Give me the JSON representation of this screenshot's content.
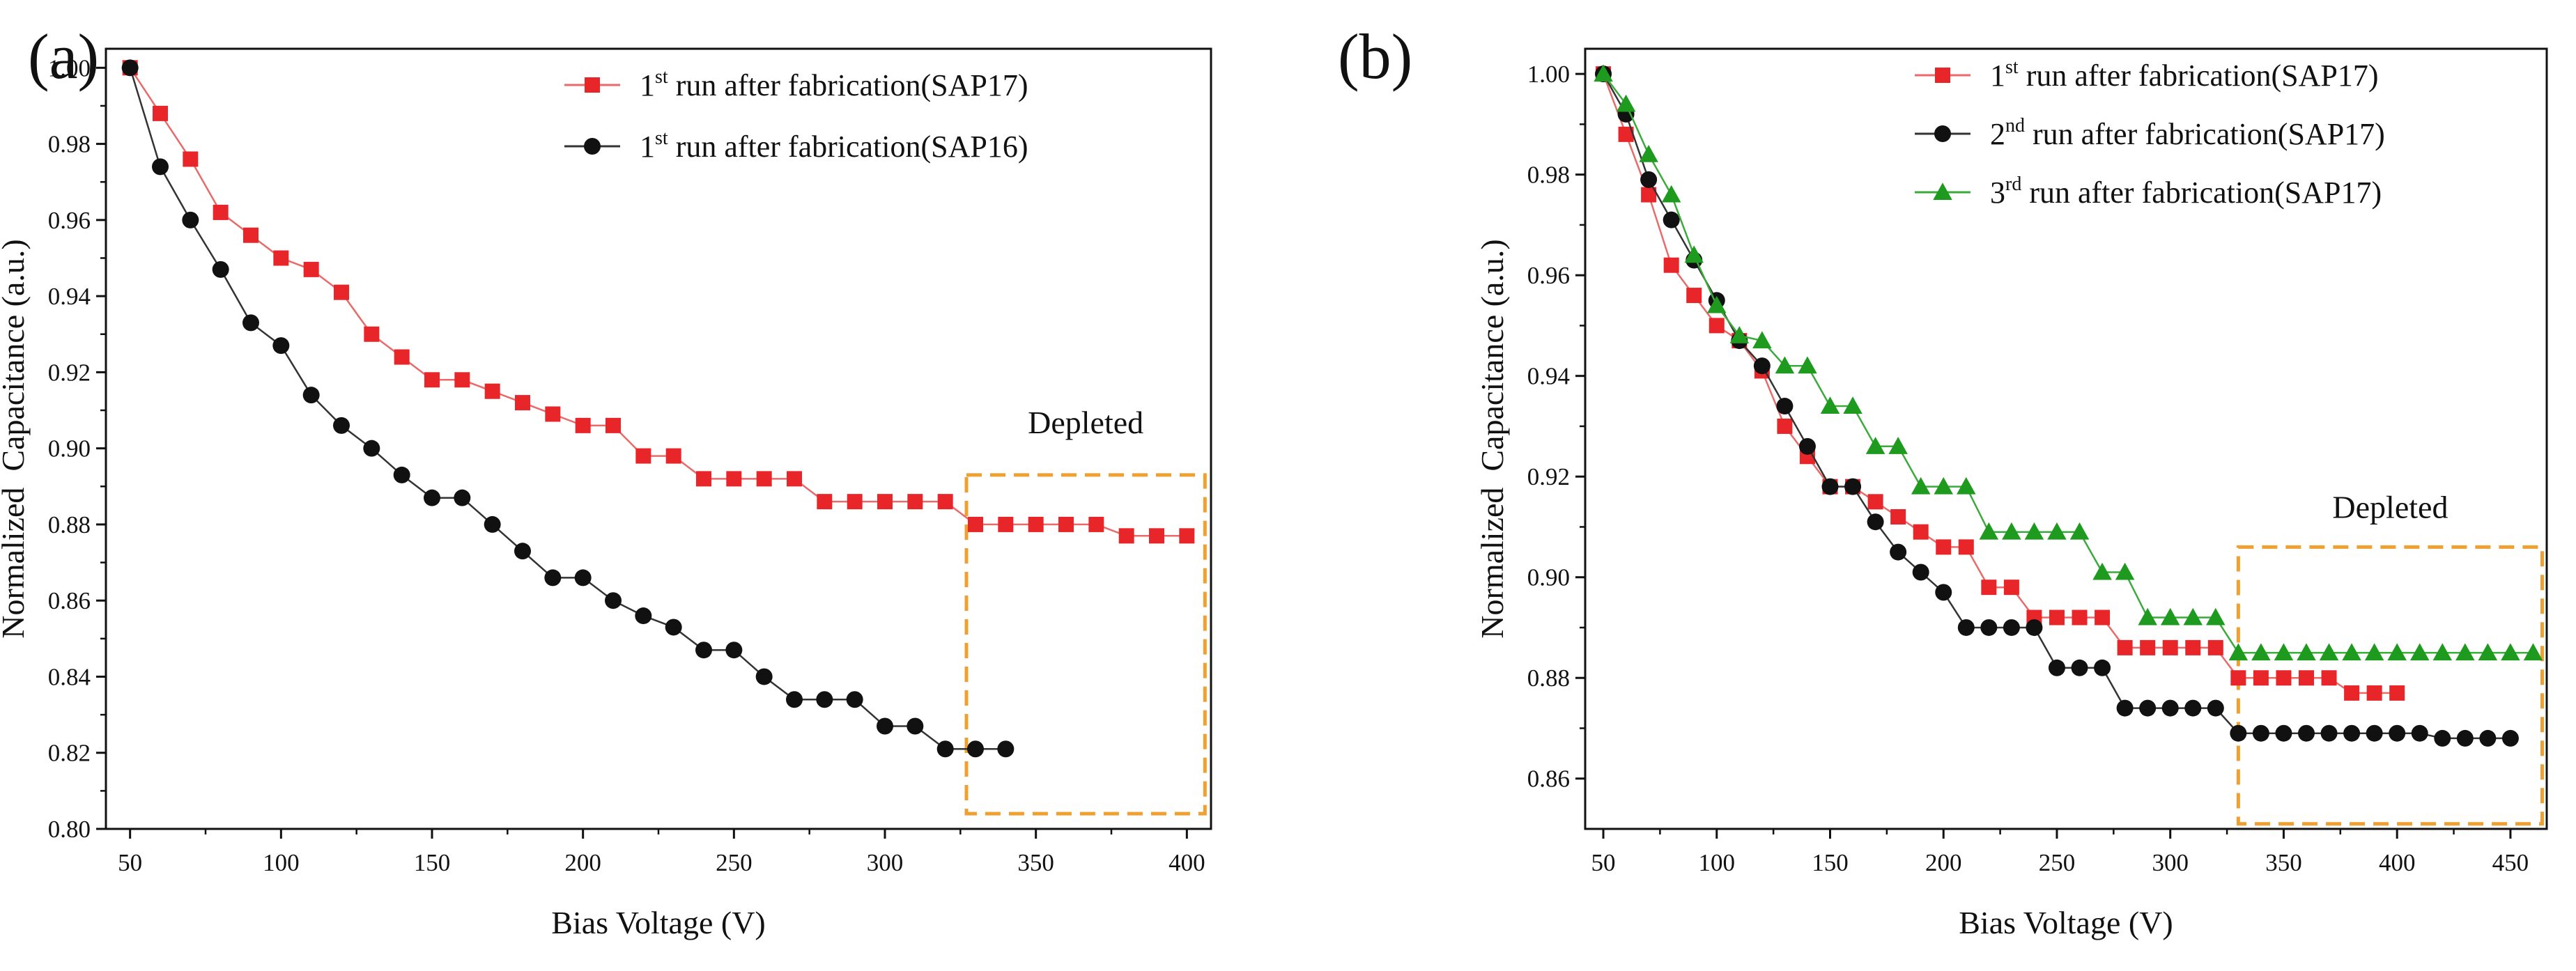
{
  "panels": [
    {
      "label": "(a)",
      "chart_data": {
        "type": "line",
        "title": "",
        "xlabel": "Bias Voltage (V)",
        "ylabel": "Normalized  Capacitance (a.u.)",
        "xlim": [
          42,
          408
        ],
        "ylim": [
          0.8,
          1.005
        ],
        "xticks": [
          50,
          100,
          150,
          200,
          250,
          300,
          350,
          400
        ],
        "yticks": [
          0.8,
          0.82,
          0.84,
          0.86,
          0.88,
          0.9,
          0.92,
          0.94,
          0.96,
          0.98,
          1.0
        ],
        "ytick_decimals": 2,
        "legend_position": "top-right",
        "series": [
          {
            "name": "run after fabrication(SAP17)",
            "ordinal": "1",
            "ordinal_suffix": "st",
            "color": "#e8262a",
            "line_color": "#e86a6a",
            "marker": "square",
            "x": [
              50,
              60,
              70,
              80,
              90,
              100,
              110,
              120,
              130,
              140,
              150,
              160,
              170,
              180,
              190,
              200,
              210,
              220,
              230,
              240,
              250,
              260,
              270,
              280,
              290,
              300,
              310,
              320,
              330,
              340,
              350,
              360,
              370,
              380,
              390,
              400
            ],
            "y": [
              1.0,
              0.988,
              0.976,
              0.962,
              0.956,
              0.95,
              0.947,
              0.941,
              0.93,
              0.924,
              0.918,
              0.918,
              0.915,
              0.912,
              0.909,
              0.906,
              0.906,
              0.898,
              0.898,
              0.892,
              0.892,
              0.892,
              0.892,
              0.886,
              0.886,
              0.886,
              0.886,
              0.886,
              0.88,
              0.88,
              0.88,
              0.88,
              0.88,
              0.877,
              0.877,
              0.877
            ]
          },
          {
            "name": "run after fabrication(SAP16)",
            "ordinal": "1",
            "ordinal_suffix": "st",
            "color": "#111111",
            "line_color": "#333333",
            "marker": "circle",
            "x": [
              50,
              60,
              70,
              80,
              90,
              100,
              110,
              120,
              130,
              140,
              150,
              160,
              170,
              180,
              190,
              200,
              210,
              220,
              230,
              240,
              250,
              260,
              270,
              280,
              290,
              300,
              310,
              320,
              330,
              340
            ],
            "y": [
              1.0,
              0.974,
              0.96,
              0.947,
              0.933,
              0.927,
              0.914,
              0.906,
              0.9,
              0.893,
              0.887,
              0.887,
              0.88,
              0.873,
              0.866,
              0.866,
              0.86,
              0.856,
              0.853,
              0.847,
              0.847,
              0.84,
              0.834,
              0.834,
              0.834,
              0.827,
              0.827,
              0.821,
              0.821,
              0.821
            ]
          }
        ],
        "annotation": {
          "text": "Depleted",
          "x_range": [
            327,
            406
          ],
          "y_range": [
            0.804,
            0.893
          ]
        }
      }
    },
    {
      "label": "(b)",
      "chart_data": {
        "type": "line",
        "title": "",
        "xlabel": "Bias Voltage (V)",
        "ylabel": "Normalized  Capacitance (a.u.)",
        "xlim": [
          42,
          466
        ],
        "ylim": [
          0.85,
          1.005
        ],
        "xticks": [
          50,
          100,
          150,
          200,
          250,
          300,
          350,
          400,
          450
        ],
        "yticks": [
          0.86,
          0.88,
          0.9,
          0.92,
          0.94,
          0.96,
          0.98,
          1.0
        ],
        "ytick_decimals": 2,
        "legend_position": "top-right",
        "series": [
          {
            "name": "run after fabrication(SAP17)",
            "ordinal": "1",
            "ordinal_suffix": "st",
            "color": "#e8262a",
            "line_color": "#e86a6a",
            "marker": "square",
            "x": [
              50,
              60,
              70,
              80,
              90,
              100,
              110,
              120,
              130,
              140,
              150,
              160,
              170,
              180,
              190,
              200,
              210,
              220,
              230,
              240,
              250,
              260,
              270,
              280,
              290,
              300,
              310,
              320,
              330,
              340,
              350,
              360,
              370,
              380,
              390,
              400
            ],
            "y": [
              1.0,
              0.988,
              0.976,
              0.962,
              0.956,
              0.95,
              0.947,
              0.941,
              0.93,
              0.924,
              0.918,
              0.918,
              0.915,
              0.912,
              0.909,
              0.906,
              0.906,
              0.898,
              0.898,
              0.892,
              0.892,
              0.892,
              0.892,
              0.886,
              0.886,
              0.886,
              0.886,
              0.886,
              0.88,
              0.88,
              0.88,
              0.88,
              0.88,
              0.877,
              0.877,
              0.877
            ]
          },
          {
            "name": "run after fabrication(SAP17)",
            "ordinal": "2",
            "ordinal_suffix": "nd",
            "color": "#111111",
            "line_color": "#333333",
            "marker": "circle",
            "x": [
              50,
              60,
              70,
              80,
              90,
              100,
              110,
              120,
              130,
              140,
              150,
              160,
              170,
              180,
              190,
              200,
              210,
              220,
              230,
              240,
              250,
              260,
              270,
              280,
              290,
              300,
              310,
              320,
              330,
              340,
              350,
              360,
              370,
              380,
              390,
              400,
              410,
              420,
              430,
              440,
              450
            ],
            "y": [
              1.0,
              0.992,
              0.979,
              0.971,
              0.963,
              0.955,
              0.947,
              0.942,
              0.934,
              0.926,
              0.918,
              0.918,
              0.911,
              0.905,
              0.901,
              0.897,
              0.89,
              0.89,
              0.89,
              0.89,
              0.882,
              0.882,
              0.882,
              0.874,
              0.874,
              0.874,
              0.874,
              0.874,
              0.869,
              0.869,
              0.869,
              0.869,
              0.869,
              0.869,
              0.869,
              0.869,
              0.869,
              0.868,
              0.868,
              0.868,
              0.868
            ]
          },
          {
            "name": "run after fabrication(SAP17)",
            "ordinal": "3",
            "ordinal_suffix": "rd",
            "color": "#1e9a1e",
            "line_color": "#3aaa3a",
            "marker": "triangle",
            "x": [
              50,
              60,
              70,
              80,
              90,
              100,
              110,
              120,
              130,
              140,
              150,
              160,
              170,
              180,
              190,
              200,
              210,
              220,
              230,
              240,
              250,
              260,
              270,
              280,
              290,
              300,
              310,
              320,
              330,
              340,
              350,
              360,
              370,
              380,
              390,
              400,
              410,
              420,
              430,
              440,
              450,
              460
            ],
            "y": [
              1.0,
              0.994,
              0.984,
              0.976,
              0.964,
              0.954,
              0.948,
              0.947,
              0.942,
              0.942,
              0.934,
              0.934,
              0.926,
              0.926,
              0.918,
              0.918,
              0.918,
              0.909,
              0.909,
              0.909,
              0.909,
              0.909,
              0.901,
              0.901,
              0.892,
              0.892,
              0.892,
              0.892,
              0.885,
              0.885,
              0.885,
              0.885,
              0.885,
              0.885,
              0.885,
              0.885,
              0.885,
              0.885,
              0.885,
              0.885,
              0.885,
              0.885
            ]
          }
        ],
        "annotation": {
          "text": "Depleted",
          "x_range": [
            330,
            464
          ],
          "y_range": [
            0.851,
            0.906
          ]
        }
      }
    }
  ]
}
